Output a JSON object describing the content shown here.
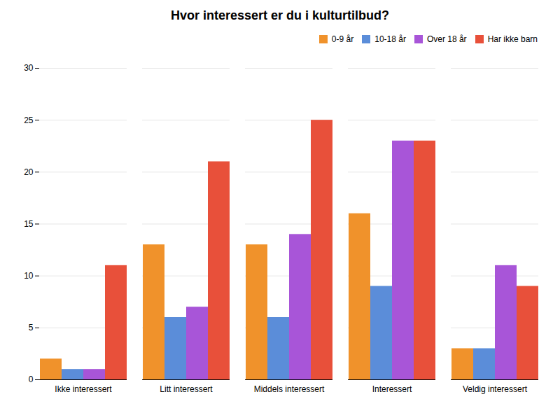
{
  "chart_data": {
    "type": "bar",
    "title": "Hvor interessert er du i kulturtilbud?",
    "categories": [
      "Ikke interessert",
      "Litt interessert",
      "Middels interessert",
      "Interessert",
      "Veldig interessert"
    ],
    "series": [
      {
        "name": "0-9 år",
        "color": "#F0922B",
        "values": [
          2,
          13,
          13,
          16,
          3
        ]
      },
      {
        "name": "10-18 år",
        "color": "#5B8DD9",
        "values": [
          1,
          6,
          6,
          9,
          3
        ]
      },
      {
        "name": "Over 18 år",
        "color": "#A855D8",
        "values": [
          1,
          7,
          14,
          23,
          11
        ]
      },
      {
        "name": "Har ikke barn",
        "color": "#E8503A",
        "values": [
          11,
          21,
          25,
          23,
          9
        ]
      }
    ],
    "ylim": [
      0,
      30
    ],
    "yticks": [
      0,
      5,
      10,
      15,
      20,
      25,
      30
    ],
    "grid": true,
    "legend": "upper right"
  }
}
